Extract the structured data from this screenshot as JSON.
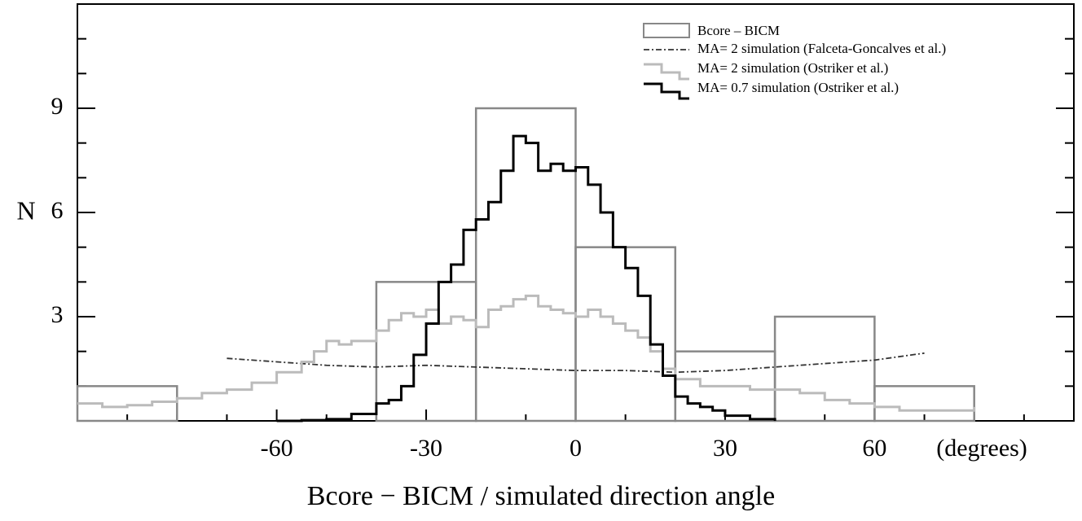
{
  "chart_data": {
    "type": "histogram",
    "name": "Bcore – BICM",
    "color": "#888888",
    "bins": [
      -100,
      -80,
      -60,
      -40,
      -20,
      0,
      20,
      40,
      60,
      80
    ],
    "values": [
      1,
      0,
      0,
      4,
      9,
      5,
      2,
      3,
      1
    ],
    "series": [
      {
        "name": "MA= 2 simulation (Falceta-Goncalves et al.)",
        "color": "#333333",
        "style": "dashdot",
        "x": [
          -70,
          -60,
          -50,
          -40,
          -30,
          -20,
          -10,
          0,
          10,
          20,
          30,
          40,
          50,
          60,
          70
        ],
        "values": [
          1.8,
          1.7,
          1.6,
          1.55,
          1.6,
          1.55,
          1.5,
          1.45,
          1.45,
          1.4,
          1.45,
          1.55,
          1.65,
          1.75,
          1.95
        ]
      },
      {
        "name": "MA= 2 simulation (Ostriker et al.)",
        "color": "#bbbbbb",
        "style": "step",
        "x": [
          -100,
          -95,
          -90,
          -85,
          -80,
          -75,
          -70,
          -65,
          -60,
          -55,
          -52.5,
          -50,
          -47.5,
          -45,
          -40,
          -37.5,
          -35,
          -32.5,
          -30,
          -27.5,
          -25,
          -22.5,
          -20,
          -17.5,
          -15,
          -12.5,
          -10,
          -7.5,
          -5,
          -2.5,
          0,
          2.5,
          5,
          7.5,
          10,
          12.5,
          15,
          17.5,
          20,
          25,
          30,
          35,
          40,
          45,
          50,
          55,
          60,
          65,
          70,
          75,
          80
        ],
        "values": [
          0.5,
          0.4,
          0.45,
          0.55,
          0.65,
          0.8,
          0.9,
          1.1,
          1.4,
          1.7,
          2.0,
          2.3,
          2.2,
          2.3,
          2.6,
          2.9,
          3.1,
          3.0,
          3.2,
          2.8,
          3.0,
          2.9,
          2.7,
          3.2,
          3.3,
          3.5,
          3.6,
          3.3,
          3.2,
          3.1,
          3.0,
          3.2,
          3.0,
          2.8,
          2.6,
          2.4,
          2.0,
          1.5,
          1.2,
          1.0,
          1.0,
          0.9,
          0.9,
          0.8,
          0.6,
          0.5,
          0.4,
          0.3,
          0.3,
          0.3,
          0.4
        ]
      },
      {
        "name": "MA= 0.7 simulation (Ostriker et al.)",
        "color": "#000000",
        "style": "step",
        "x": [
          -60,
          -55,
          -50,
          -45,
          -40,
          -37.5,
          -35,
          -32.5,
          -30,
          -27.5,
          -25,
          -22.5,
          -20,
          -17.5,
          -15,
          -12.5,
          -10,
          -7.5,
          -5,
          -2.5,
          0,
          2.5,
          5,
          7.5,
          10,
          12.5,
          15,
          17.5,
          20,
          22.5,
          25,
          27.5,
          30,
          35,
          40
        ],
        "values": [
          0,
          0.02,
          0.05,
          0.2,
          0.5,
          0.6,
          1.0,
          1.9,
          2.8,
          4.0,
          4.5,
          5.5,
          5.8,
          6.3,
          7.2,
          8.2,
          8.0,
          7.2,
          7.4,
          7.2,
          7.3,
          6.8,
          6.0,
          5.0,
          4.4,
          3.6,
          2.2,
          1.3,
          0.7,
          0.5,
          0.4,
          0.3,
          0.15,
          0.05,
          0
        ]
      }
    ],
    "xlim": [
      -100,
      100
    ],
    "ylim": [
      0,
      12
    ],
    "xticks": [
      -60,
      -30,
      0,
      30,
      60
    ],
    "yticks": [
      3,
      6,
      9
    ],
    "xminor_ticks": [
      -90,
      -80,
      -70,
      -50,
      -40,
      -20,
      -10,
      10,
      20,
      40,
      50,
      70,
      80,
      90
    ],
    "yminor_ticks": [
      1,
      2,
      4,
      5,
      7,
      8,
      10,
      11
    ],
    "x_unit": "(degrees)",
    "ylabel": "N",
    "xlabel": "Bcore − BICM / simulated direction angle"
  }
}
